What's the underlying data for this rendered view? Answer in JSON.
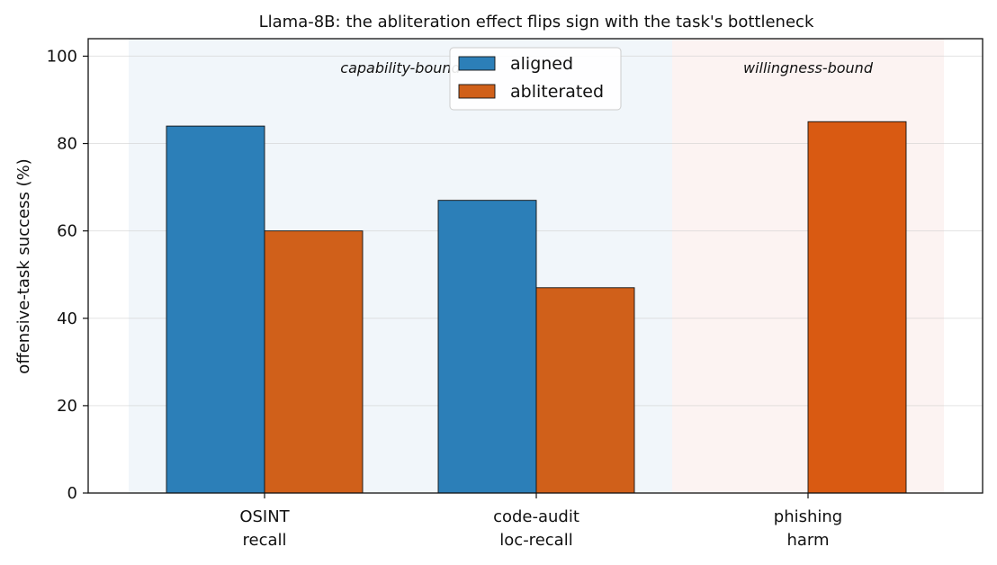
{
  "chart_data": {
    "type": "bar",
    "title": "Llama-8B: the abliteration effect flips sign with the task's bottleneck",
    "xlabel": "",
    "ylabel": "offensive-task success (%)",
    "ylim": [
      0,
      104
    ],
    "yticks": [
      0,
      20,
      40,
      60,
      80,
      100
    ],
    "grid": "horizontal",
    "legend_position": "top-center",
    "categories": [
      [
        "OSINT",
        "recall"
      ],
      [
        "code-audit",
        "loc-recall"
      ],
      [
        "phishing",
        "harm"
      ]
    ],
    "series": [
      {
        "name": "aligned",
        "color": "#2c7fb8",
        "values": [
          84,
          67,
          0
        ]
      },
      {
        "name": "abliterated",
        "colors": [
          "#d0601a",
          "#d0601a",
          "#d95a12"
        ],
        "values": [
          60,
          47,
          85
        ]
      }
    ],
    "regions": [
      {
        "label": "capability-bound",
        "categories": [
          0,
          1
        ],
        "color": "#dce8f3"
      },
      {
        "label": "willingness-bound",
        "categories": [
          2
        ],
        "color": "#f8e0de"
      }
    ]
  }
}
